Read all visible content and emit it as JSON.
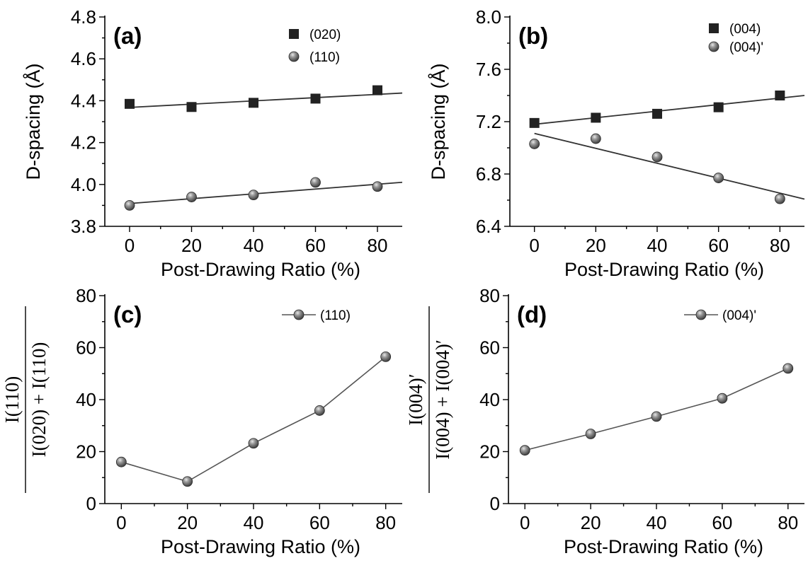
{
  "colors": {
    "square": "#222222",
    "sphere": "#7a7a7a",
    "fit_line": "#333333",
    "connect_line": "#555555"
  },
  "chart_data": [
    {
      "id": "a",
      "type": "scatter",
      "panel_label": "(a)",
      "xlabel": "Post-Drawing Ratio (%)",
      "ylabel": "D-spacing (Å)",
      "xlim": [
        -8,
        88
      ],
      "ylim": [
        3.8,
        4.8
      ],
      "xticks": [
        0,
        20,
        40,
        60,
        80
      ],
      "yticks": [
        3.8,
        4.0,
        4.2,
        4.4,
        4.6,
        4.8
      ],
      "ytick_labels": [
        "3.8",
        "4.0",
        "4.2",
        "4.4",
        "4.6",
        "4.8"
      ],
      "legend_position": "top-right",
      "series": [
        {
          "name": "(020)",
          "marker": "square",
          "x": [
            0,
            20,
            40,
            60,
            80
          ],
          "y": [
            4.385,
            4.37,
            4.39,
            4.41,
            4.45
          ],
          "fit": {
            "slope": 0.00078,
            "intercept": 4.368
          }
        },
        {
          "name": "(110)",
          "marker": "sphere",
          "x": [
            0,
            20,
            40,
            60,
            80
          ],
          "y": [
            3.9,
            3.94,
            3.95,
            4.01,
            3.99
          ],
          "fit": {
            "slope": 0.00115,
            "intercept": 3.909
          }
        }
      ]
    },
    {
      "id": "b",
      "type": "scatter",
      "panel_label": "(b)",
      "xlabel": "Post-Drawing Ratio (%)",
      "ylabel": "D-spacing (Å)",
      "xlim": [
        -8,
        88
      ],
      "ylim": [
        6.4,
        8.0
      ],
      "xticks": [
        0,
        20,
        40,
        60,
        80
      ],
      "yticks": [
        6.4,
        6.8,
        7.2,
        7.6,
        8.0
      ],
      "ytick_labels": [
        "6.4",
        "6.8",
        "7.2",
        "7.6",
        "8.0"
      ],
      "legend_position": "top-right",
      "series": [
        {
          "name": "(004)",
          "marker": "square",
          "x": [
            0,
            20,
            40,
            60,
            80
          ],
          "y": [
            7.19,
            7.23,
            7.26,
            7.31,
            7.4
          ],
          "fit": {
            "slope": 0.0025,
            "intercept": 7.18
          }
        },
        {
          "name": "(004)'",
          "marker": "sphere",
          "x": [
            0,
            20,
            40,
            60,
            80
          ],
          "y": [
            7.03,
            7.07,
            6.93,
            6.77,
            6.61
          ],
          "fit": {
            "slope": -0.0057,
            "intercept": 7.11
          }
        }
      ]
    },
    {
      "id": "c",
      "type": "line",
      "panel_label": "(c)",
      "xlabel": "Post-Drawing Ratio (%)",
      "ylabel_fraction": {
        "numerator": "I(110)",
        "denominator": "I(020) + I(110)"
      },
      "xlim": [
        -5,
        85
      ],
      "ylim": [
        0,
        80
      ],
      "xticks": [
        0,
        20,
        40,
        60,
        80
      ],
      "yticks": [
        0,
        20,
        40,
        60,
        80
      ],
      "ytick_labels": [
        "0",
        "20",
        "40",
        "60",
        "80"
      ],
      "legend_position": "top-right",
      "series": [
        {
          "name": "(110)",
          "marker": "sphere",
          "x": [
            0,
            20,
            40,
            60,
            80
          ],
          "y": [
            16,
            8.5,
            23.2,
            35.8,
            56.5
          ]
        }
      ]
    },
    {
      "id": "d",
      "type": "line",
      "panel_label": "(d)",
      "xlabel": "Post-Drawing Ratio (%)",
      "ylabel_fraction": {
        "numerator": "I(004)′",
        "denominator": "I(004) + I(004)′"
      },
      "xlim": [
        -5,
        85
      ],
      "ylim": [
        0,
        80
      ],
      "xticks": [
        0,
        20,
        40,
        60,
        80
      ],
      "yticks": [
        0,
        20,
        40,
        60,
        80
      ],
      "ytick_labels": [
        "0",
        "20",
        "40",
        "60",
        "80"
      ],
      "legend_position": "top-right",
      "series": [
        {
          "name": "(004)'",
          "marker": "sphere",
          "x": [
            0,
            20,
            40,
            60,
            80
          ],
          "y": [
            20.5,
            26.8,
            33.5,
            40.5,
            52
          ]
        }
      ]
    }
  ]
}
